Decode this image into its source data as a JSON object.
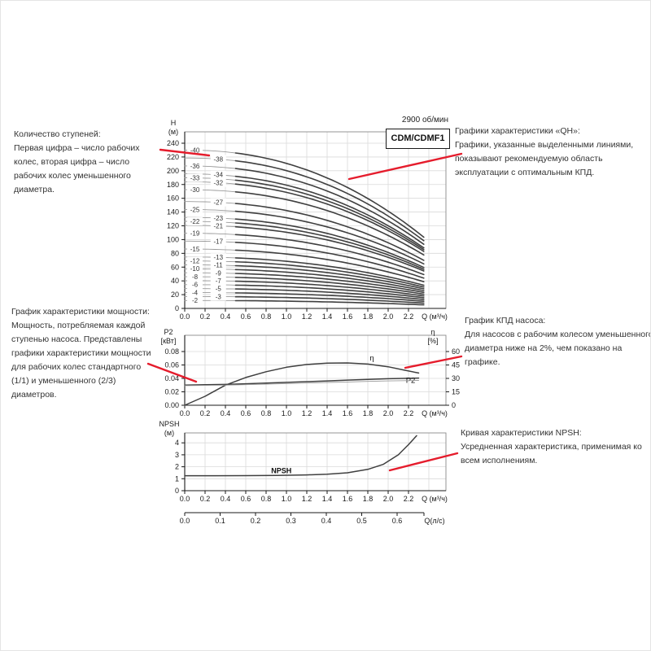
{
  "header": {
    "rpm": "2900 об/мин",
    "model": "CDM/CDMF1"
  },
  "annotations": {
    "stages": {
      "title": "Количество ступеней:",
      "body": "Первая цифра – число рабочих колес, вторая цифра – число рабочих колес уменьшенного диаметра."
    },
    "qh": {
      "title": "Графики характеристики «QH»:",
      "body": "Графики, указанные выделенными линиями, показывают рекомендуемую область эксплуатации с оптимальным КПД."
    },
    "power": {
      "title": "График характеристики мощности:",
      "body": "Мощность, потребляемая каждой ступенью насоса. Представлены графики характеристики мощности для рабочих колес стандартного (1/1) и уменьшенного (2/3) диаметров."
    },
    "efficiency": {
      "title": "График КПД насоса:",
      "body": "Для насосов с рабочим колесом уменьшенного диаметра ниже на 2%, чем показано на графике."
    },
    "npsh": {
      "title": "Кривая характеристики NPSH:",
      "body": "Усредненная характеристика, применимая ко всем исполнениям."
    }
  },
  "colors": {
    "accent_red": "#e51c2c",
    "curve_bold": "#3f3f3f",
    "curve_thin": "#9a9a9a",
    "grid": "#dadada",
    "axis": "#1a1a1a",
    "text": "#333333"
  },
  "chart_data": [
    {
      "id": "qh",
      "type": "line",
      "title": "CDM/CDMF1",
      "speed": "2900 об/мин",
      "xlabel": "Q (м³/ч)",
      "ylabel": "H\n(м)",
      "xlim": [
        0,
        2.57
      ],
      "ylim": [
        0,
        256
      ],
      "grid": true,
      "xticks": [
        "0.0",
        "0.2",
        "0.4",
        "0.6",
        "0.8",
        "1.0",
        "1.2",
        "1.4",
        "1.6",
        "1.8",
        "2.0",
        "2.2"
      ],
      "yticks": [
        "0",
        "20",
        "40",
        "60",
        "80",
        "100",
        "120",
        "140",
        "160",
        "180",
        "200",
        "220",
        "240"
      ],
      "head_per_stage_m": 5.75,
      "curve_model": {
        "q_end": 2.35,
        "q_bold_from": 0.5,
        "drop_fraction": 0.55,
        "exponent": 2.2
      },
      "stage_curves": [
        {
          "stage": 2,
          "label": "-2",
          "label_q": 0.1
        },
        {
          "stage": 3,
          "label": "-3",
          "label_q": 0.33
        },
        {
          "stage": 4,
          "label": "-4",
          "label_q": 0.1
        },
        {
          "stage": 5,
          "label": "-5",
          "label_q": 0.33
        },
        {
          "stage": 6,
          "label": "-6",
          "label_q": 0.1
        },
        {
          "stage": 7,
          "label": "-7",
          "label_q": 0.33
        },
        {
          "stage": 8,
          "label": "-8",
          "label_q": 0.1
        },
        {
          "stage": 9,
          "label": "-9",
          "label_q": 0.33
        },
        {
          "stage": 10,
          "label": "-10",
          "label_q": 0.1
        },
        {
          "stage": 11,
          "label": "-11",
          "label_q": 0.33
        },
        {
          "stage": 12,
          "label": "-12",
          "label_q": 0.1
        },
        {
          "stage": 13,
          "label": "-13",
          "label_q": 0.33
        },
        {
          "stage": 15,
          "label": "-15",
          "label_q": 0.1
        },
        {
          "stage": 17,
          "label": "-17",
          "label_q": 0.33
        },
        {
          "stage": 19,
          "label": "-19",
          "label_q": 0.1
        },
        {
          "stage": 21,
          "label": "-21",
          "label_q": 0.33
        },
        {
          "stage": 22,
          "label": "-22",
          "label_q": 0.1
        },
        {
          "stage": 23,
          "label": "-23",
          "label_q": 0.33
        },
        {
          "stage": 25,
          "label": "-25",
          "label_q": 0.1
        },
        {
          "stage": 27,
          "label": "-27",
          "label_q": 0.33
        },
        {
          "stage": 30,
          "label": "-30",
          "label_q": 0.1
        },
        {
          "stage": 32,
          "label": "-32",
          "label_q": 0.33
        },
        {
          "stage": 33,
          "label": "-33",
          "label_q": 0.1
        },
        {
          "stage": 34,
          "label": "-34",
          "label_q": 0.33
        },
        {
          "stage": 36,
          "label": "-36",
          "label_q": 0.1
        },
        {
          "stage": 38,
          "label": "-38",
          "label_q": 0.33
        },
        {
          "stage": 40,
          "label": "-40",
          "label_q": 0.1
        }
      ]
    },
    {
      "id": "power-efficiency",
      "type": "line",
      "xlabel": "Q (м³/ч)",
      "ylabel_left": "P2\n[кВт]",
      "ylabel_right": "η\n[%]",
      "xlim": [
        0,
        2.57
      ],
      "ylim_left": [
        0,
        0.104
      ],
      "ylim_right": [
        0,
        78
      ],
      "grid": true,
      "xticks": [
        "0.0",
        "0.2",
        "0.4",
        "0.6",
        "0.8",
        "1.0",
        "1.2",
        "1.4",
        "1.6",
        "1.8",
        "2.0",
        "2.2"
      ],
      "yticks_left": [
        "0.00",
        "0.02",
        "0.04",
        "0.06",
        "0.08"
      ],
      "yticks_right": [
        "0",
        "15",
        "30",
        "45",
        "60"
      ],
      "x": [
        0,
        0.2,
        0.4,
        0.6,
        0.8,
        1.0,
        1.2,
        1.4,
        1.6,
        1.8,
        2.0,
        2.15,
        2.3
      ],
      "series": [
        {
          "name": "η",
          "axis": "right",
          "style": "bold",
          "values": [
            0,
            10,
            22.5,
            31,
            37.5,
            42.5,
            45.5,
            47,
            47.3,
            46,
            43,
            39.5,
            36
          ],
          "label": {
            "text": "η",
            "q": 1.84,
            "v": 50
          }
        },
        {
          "name": "P2 (1/1)",
          "axis": "left",
          "style": "bold",
          "values": [
            0.03,
            0.0305,
            0.031,
            0.032,
            0.033,
            0.034,
            0.0352,
            0.0363,
            0.0374,
            0.0385,
            0.0395,
            0.04,
            0.0405
          ],
          "label": {
            "text": "P2",
            "q": 2.22,
            "v": 0.0335
          }
        },
        {
          "name": "P2 (2/3)",
          "axis": "left",
          "style": "thin",
          "values": [
            0.0292,
            0.0296,
            0.03,
            0.0307,
            0.0315,
            0.0323,
            0.0331,
            0.0339,
            0.0347,
            0.0355,
            0.0362,
            0.0366,
            0.037
          ]
        }
      ]
    },
    {
      "id": "npsh",
      "type": "line",
      "xlabel": "Q (м³/ч)",
      "xlabel2": "Q(л/с)",
      "ylabel": "NPSH\n(м)",
      "xlim": [
        0,
        2.57
      ],
      "ylim": [
        0,
        4.85
      ],
      "grid": true,
      "xticks": [
        "0.0",
        "0.2",
        "0.4",
        "0.6",
        "0.8",
        "1.0",
        "1.2",
        "1.4",
        "1.6",
        "1.8",
        "2.0",
        "2.2"
      ],
      "yticks": [
        "0",
        "1",
        "2",
        "3",
        "4"
      ],
      "xticks2": [
        "0.0",
        "0.1",
        "0.2",
        "0.3",
        "0.4",
        "0.5",
        "0.6"
      ],
      "lps_to_m3h": 3.48,
      "x": [
        0,
        0.3,
        0.6,
        0.9,
        1.2,
        1.4,
        1.6,
        1.8,
        1.95,
        2.1,
        2.2,
        2.28
      ],
      "series": [
        {
          "name": "NPSH",
          "style": "bold",
          "values": [
            1.25,
            1.25,
            1.26,
            1.28,
            1.32,
            1.38,
            1.5,
            1.78,
            2.2,
            3.0,
            3.85,
            4.6
          ],
          "label": {
            "text": "NPSH",
            "q": 0.95,
            "v": 1.45
          }
        }
      ]
    }
  ]
}
